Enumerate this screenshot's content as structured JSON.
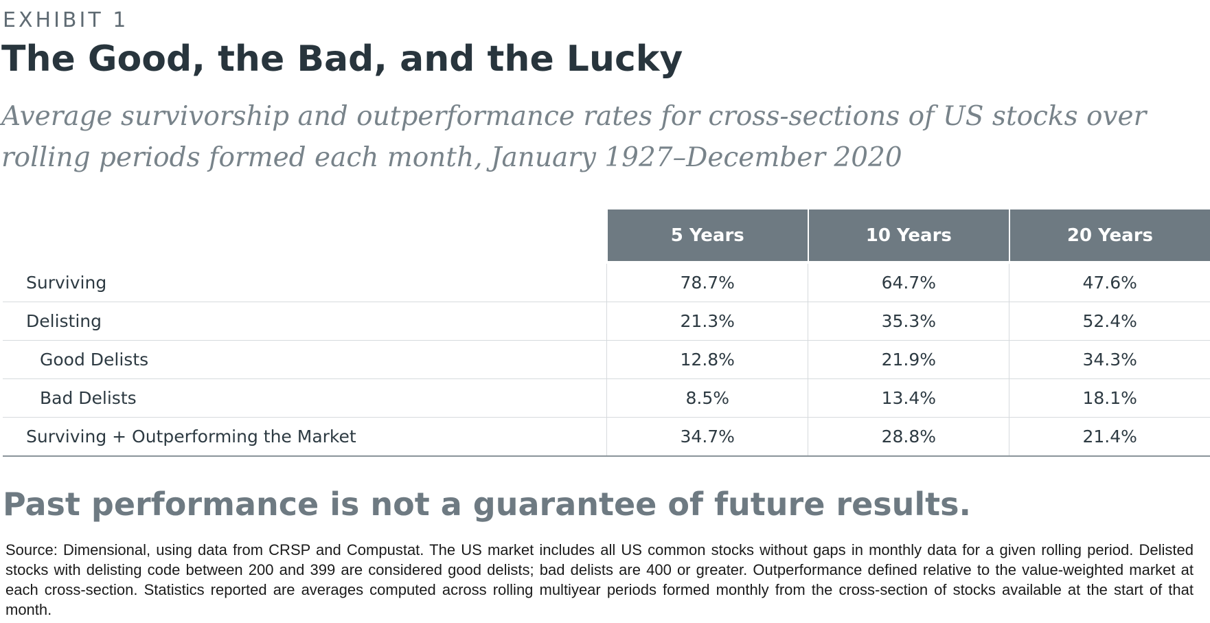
{
  "header": {
    "exhibit": "EXHIBIT 1",
    "title": "The Good, the Bad, and the Lucky",
    "subtitle": "Average survivorship and outperformance rates for cross-sections of US stocks over rolling periods formed each month, January 1927–December 2020"
  },
  "chart_data": {
    "type": "table",
    "columns": [
      "5 Years",
      "10 Years",
      "20 Years"
    ],
    "rows": [
      {
        "label": "Surviving",
        "indent": false,
        "values": [
          "78.7%",
          "64.7%",
          "47.6%"
        ]
      },
      {
        "label": "Delisting",
        "indent": false,
        "values": [
          "21.3%",
          "35.3%",
          "52.4%"
        ]
      },
      {
        "label": "Good Delists",
        "indent": true,
        "values": [
          "12.8%",
          "21.9%",
          "34.3%"
        ]
      },
      {
        "label": "Bad Delists",
        "indent": true,
        "values": [
          "8.5%",
          "13.4%",
          "18.1%"
        ]
      },
      {
        "label": "Surviving + Outperforming the Market",
        "indent": false,
        "values": [
          "34.7%",
          "28.8%",
          "21.4%"
        ]
      }
    ]
  },
  "footer": {
    "disclaimer": "Past performance is not a guarantee of future results.",
    "source": "Source: Dimensional, using data from CRSP and Compustat. The US market includes all US common stocks without gaps in monthly data for a given rolling period. Delisted stocks with delisting code between 200 and 399 are considered good delists; bad delists are 400 or greater. Outperformance defined relative to the value-weighted market at each cross-section. Statistics reported are averages computed across rolling multiyear periods formed monthly from the cross-section of stocks available at the start of that month."
  },
  "colors": {
    "header_fill": "#6e7a82",
    "title_text": "#28353d",
    "subtitle_text": "#78838a"
  }
}
